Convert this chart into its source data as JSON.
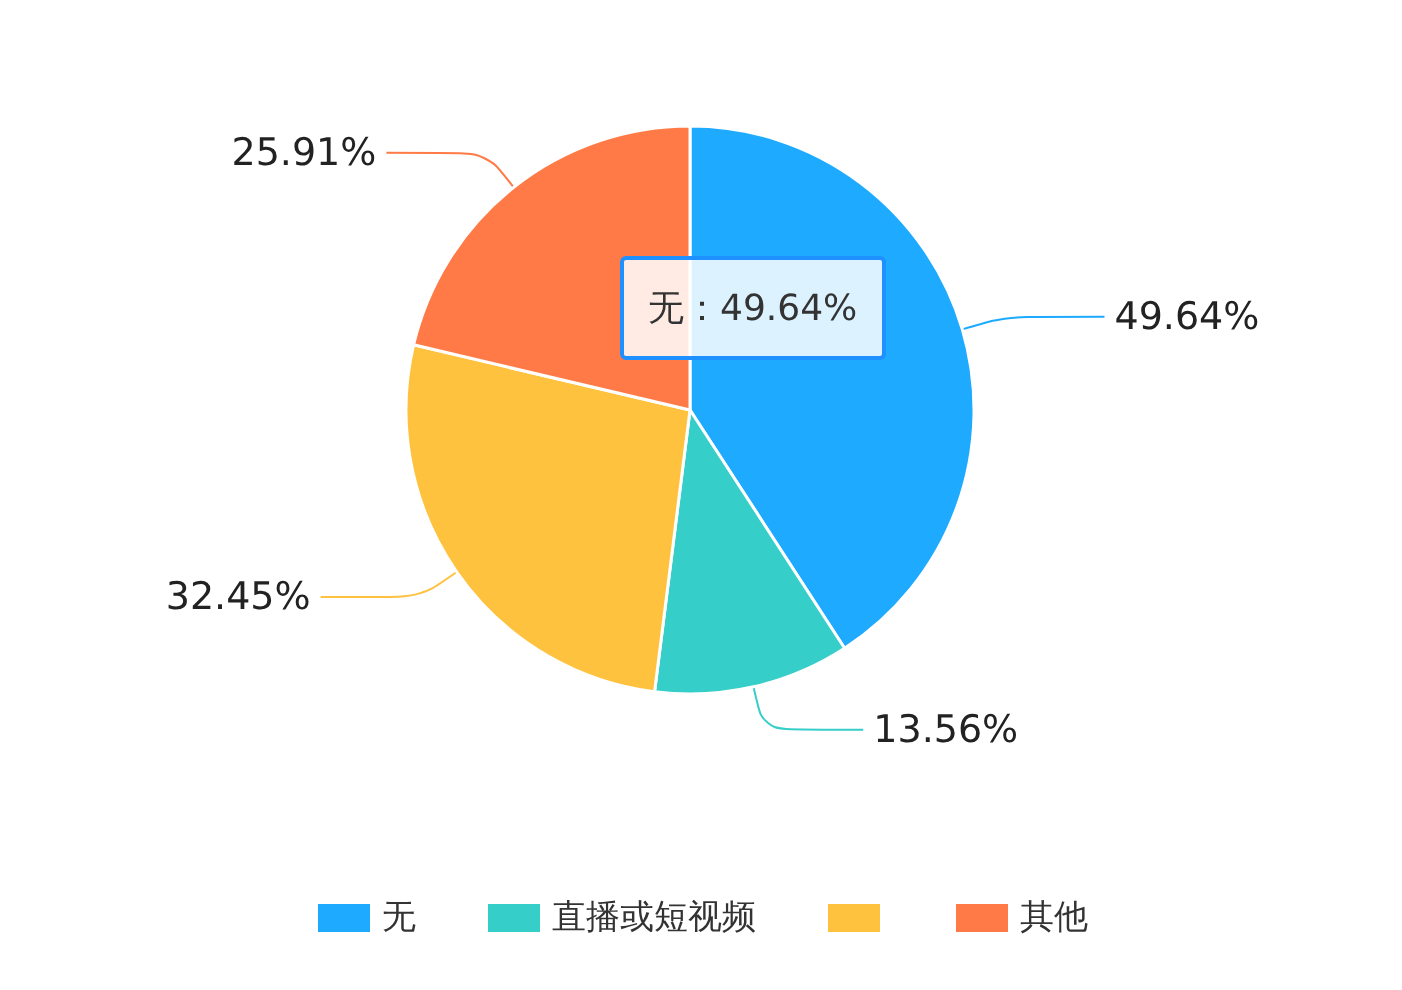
{
  "chart_data": {
    "type": "pie",
    "categories": [
      "无",
      "直播或短视频",
      null,
      "其他"
    ],
    "values": [
      49.64,
      13.56,
      32.45,
      25.91
    ],
    "value_labels": [
      "49.64%",
      "13.56%",
      "32.45%",
      "25.91%"
    ],
    "colors": [
      "#1eaaff",
      "#36cec9",
      "#ffc23f",
      "#ff7a46"
    ],
    "legend": "bottom",
    "annotations": [
      "无：49.64%"
    ]
  }
}
